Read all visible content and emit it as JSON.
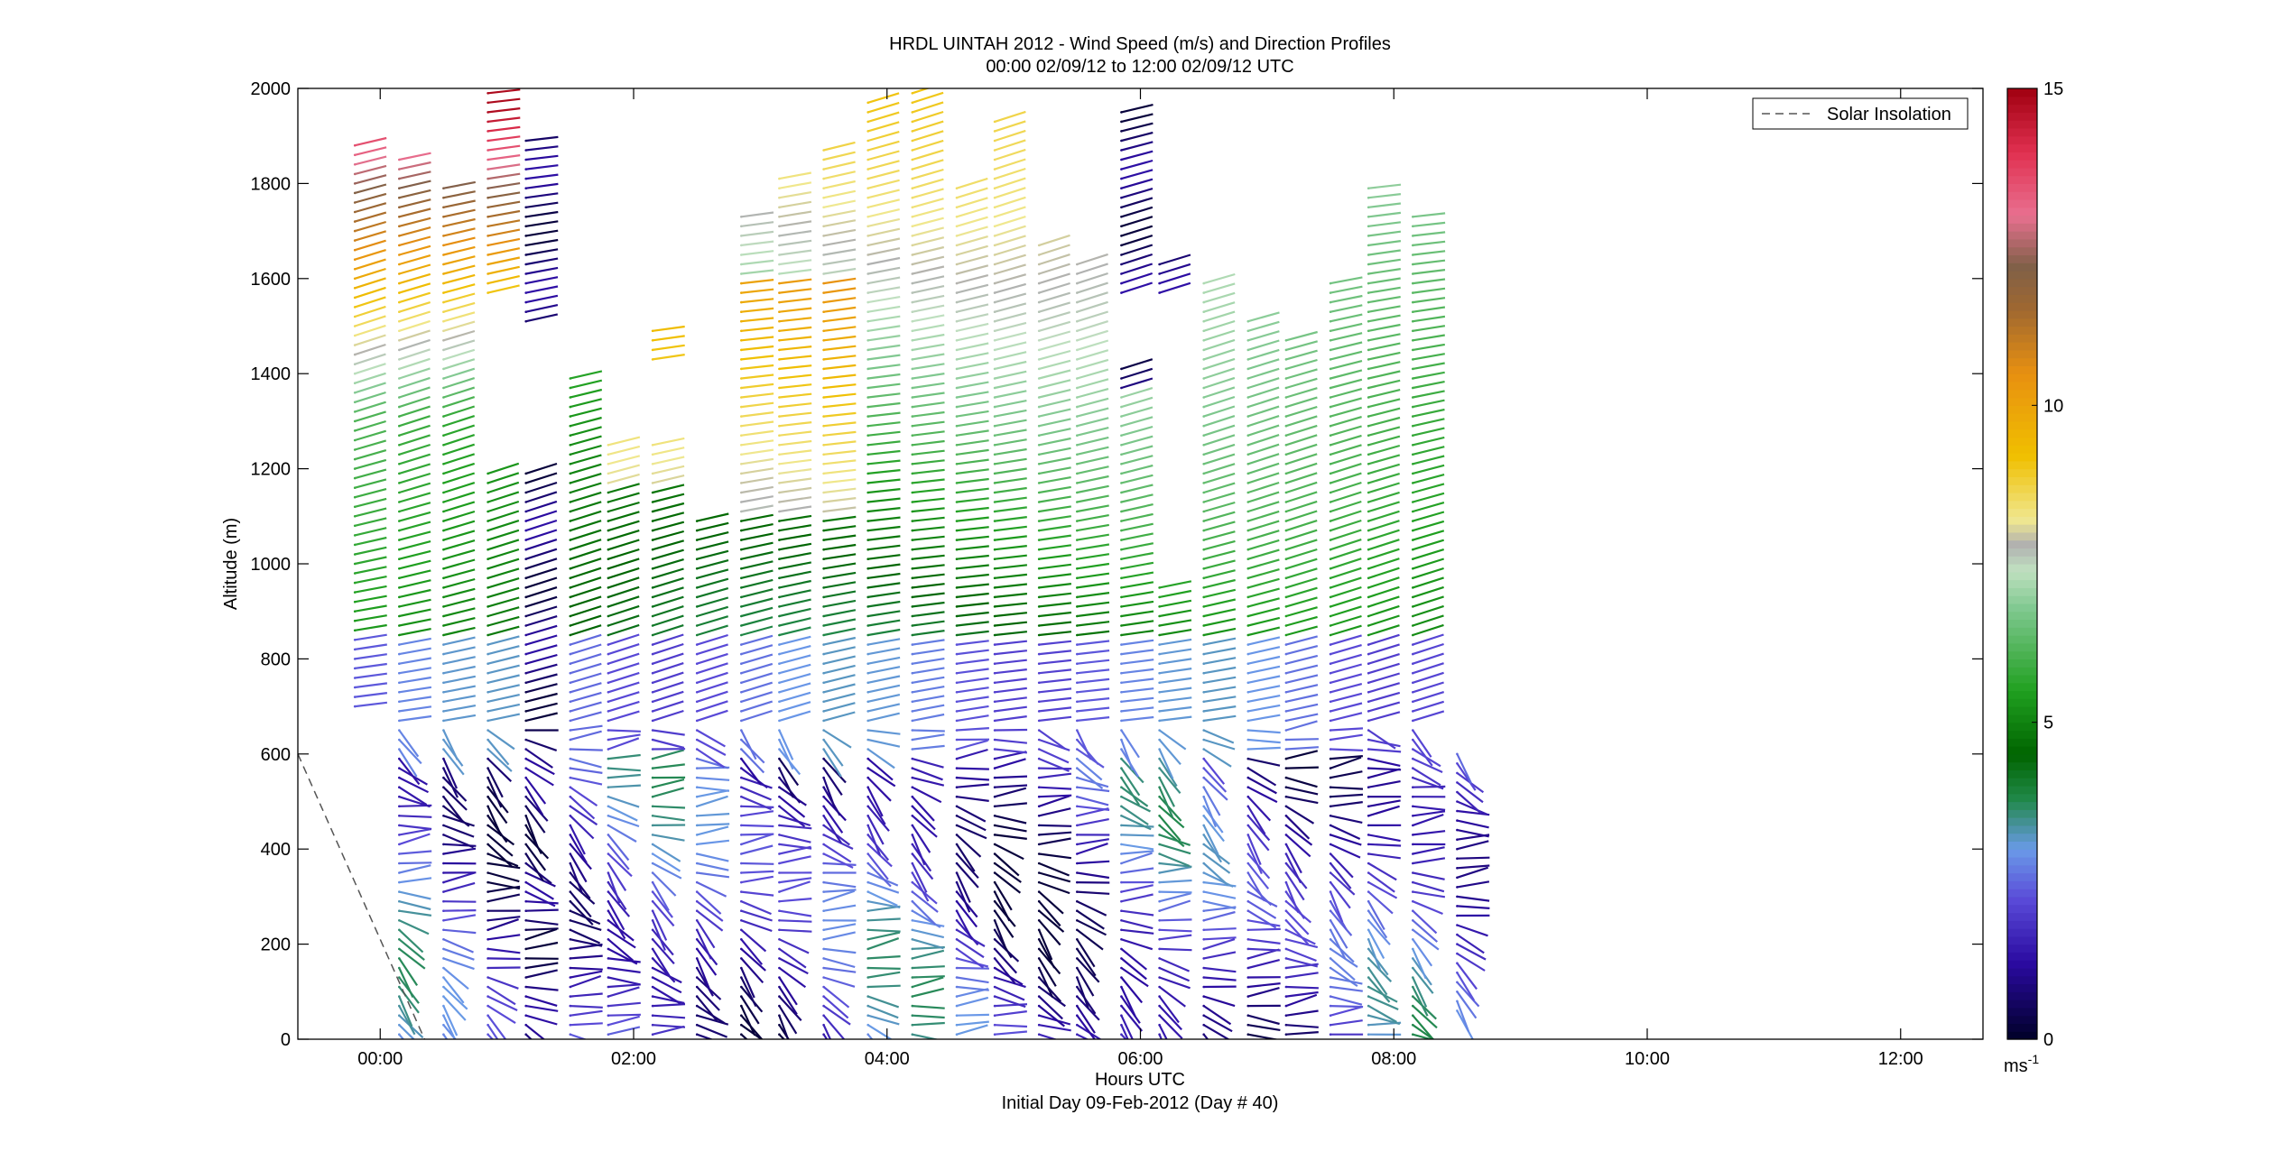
{
  "chart_data": {
    "type": "wind-barb-profile",
    "title_line1": "HRDL UINTAH 2012 - Wind Speed (m/s) and Direction Profiles",
    "title_line2": "00:00 02/09/12 to 12:00 02/09/12  UTC",
    "xlabel_line1": "Hours UTC",
    "xlabel_line2": "Initial Day 09-Feb-2012 (Day # 40)",
    "ylabel": "Altitude (m)",
    "x_range_hours": [
      -0.65,
      12.65
    ],
    "y_range_m": [
      0,
      2000
    ],
    "x_ticks": [
      {
        "h": 0,
        "label": "00:00"
      },
      {
        "h": 2,
        "label": "02:00"
      },
      {
        "h": 4,
        "label": "04:00"
      },
      {
        "h": 6,
        "label": "06:00"
      },
      {
        "h": 8,
        "label": "08:00"
      },
      {
        "h": 10,
        "label": "10:00"
      },
      {
        "h": 12,
        "label": "12:00"
      }
    ],
    "y_ticks": [
      0,
      200,
      400,
      600,
      800,
      1000,
      1200,
      1400,
      1600,
      1800,
      2000
    ],
    "legend": {
      "label": "Solar Insolation",
      "placement": "top-right"
    },
    "colorbar": {
      "range": [
        0,
        15
      ],
      "ticks": [
        0,
        5,
        10,
        15
      ],
      "unit": "ms",
      "unit_exp": "-1",
      "stops": [
        {
          "v": 0,
          "c": "#000028"
        },
        {
          "v": 1.2,
          "c": "#2a0aa0"
        },
        {
          "v": 2.2,
          "c": "#5a4ad8"
        },
        {
          "v": 3.0,
          "c": "#6a9ae8"
        },
        {
          "v": 3.8,
          "c": "#208848"
        },
        {
          "v": 4.5,
          "c": "#006400"
        },
        {
          "v": 5.5,
          "c": "#20a020"
        },
        {
          "v": 6.8,
          "c": "#80c890"
        },
        {
          "v": 7.4,
          "c": "#c0e0c0"
        },
        {
          "v": 7.8,
          "c": "#b0b0b0"
        },
        {
          "v": 8.2,
          "c": "#f0e890"
        },
        {
          "v": 9.2,
          "c": "#f0c000"
        },
        {
          "v": 10.5,
          "c": "#e89010"
        },
        {
          "v": 11.5,
          "c": "#a06830"
        },
        {
          "v": 12.2,
          "c": "#806048"
        },
        {
          "v": 13.0,
          "c": "#e87090"
        },
        {
          "v": 14.0,
          "c": "#e03050"
        },
        {
          "v": 15,
          "c": "#a00010"
        }
      ]
    },
    "solar_insolation": {
      "x": [
        -0.65,
        0.35
      ],
      "y": [
        600,
        0
      ],
      "style": "dashed"
    },
    "profiles": [
      {
        "t": -0.2,
        "bottom": 700,
        "top": 1890,
        "cuts": []
      },
      {
        "t": 0.15,
        "bottom": 10,
        "top": 1850,
        "cuts": []
      },
      {
        "t": 0.5,
        "bottom": 10,
        "top": 1790,
        "cuts": []
      },
      {
        "t": 0.85,
        "bottom": 10,
        "top": 1990,
        "cuts": [
          [
            1200,
            1570
          ]
        ]
      },
      {
        "t": 1.15,
        "bottom": 10,
        "top": 1890,
        "cuts": [
          [
            1200,
            1500
          ]
        ]
      },
      {
        "t": 1.5,
        "bottom": 10,
        "top": 1390,
        "cuts": []
      },
      {
        "t": 1.8,
        "bottom": 10,
        "top": 1250,
        "cuts": []
      },
      {
        "t": 2.15,
        "bottom": 10,
        "top": 1490,
        "cuts": [
          [
            1260,
            1420
          ]
        ]
      },
      {
        "t": 2.5,
        "bottom": 10,
        "top": 1090,
        "cuts": []
      },
      {
        "t": 2.85,
        "bottom": 10,
        "top": 1740,
        "cuts": []
      },
      {
        "t": 3.15,
        "bottom": 10,
        "top": 1820,
        "cuts": []
      },
      {
        "t": 3.5,
        "bottom": 10,
        "top": 1870,
        "cuts": []
      },
      {
        "t": 3.85,
        "bottom": 10,
        "top": 1980,
        "cuts": []
      },
      {
        "t": 4.2,
        "bottom": 10,
        "top": 2000,
        "cuts": []
      },
      {
        "t": 4.55,
        "bottom": 10,
        "top": 1800,
        "cuts": []
      },
      {
        "t": 4.85,
        "bottom": 10,
        "top": 1940,
        "cuts": []
      },
      {
        "t": 5.2,
        "bottom": 10,
        "top": 1680,
        "cuts": []
      },
      {
        "t": 5.5,
        "bottom": 10,
        "top": 1640,
        "cuts": []
      },
      {
        "t": 5.85,
        "bottom": 10,
        "top": 1950,
        "cuts": [
          [
            1420,
            1560
          ]
        ]
      },
      {
        "t": 6.15,
        "bottom": 10,
        "top": 1640,
        "cuts": [
          [
            950,
            1560
          ]
        ]
      },
      {
        "t": 6.5,
        "bottom": 10,
        "top": 1590,
        "cuts": []
      },
      {
        "t": 6.85,
        "bottom": 10,
        "top": 1520,
        "cuts": []
      },
      {
        "t": 7.15,
        "bottom": 10,
        "top": 1480,
        "cuts": []
      },
      {
        "t": 7.5,
        "bottom": 10,
        "top": 1590,
        "cuts": []
      },
      {
        "t": 7.8,
        "bottom": 10,
        "top": 1790,
        "cuts": []
      },
      {
        "t": 8.15,
        "bottom": 10,
        "top": 1740,
        "cuts": []
      },
      {
        "t": 8.5,
        "bottom": 60,
        "top": 600,
        "cuts": []
      }
    ]
  }
}
